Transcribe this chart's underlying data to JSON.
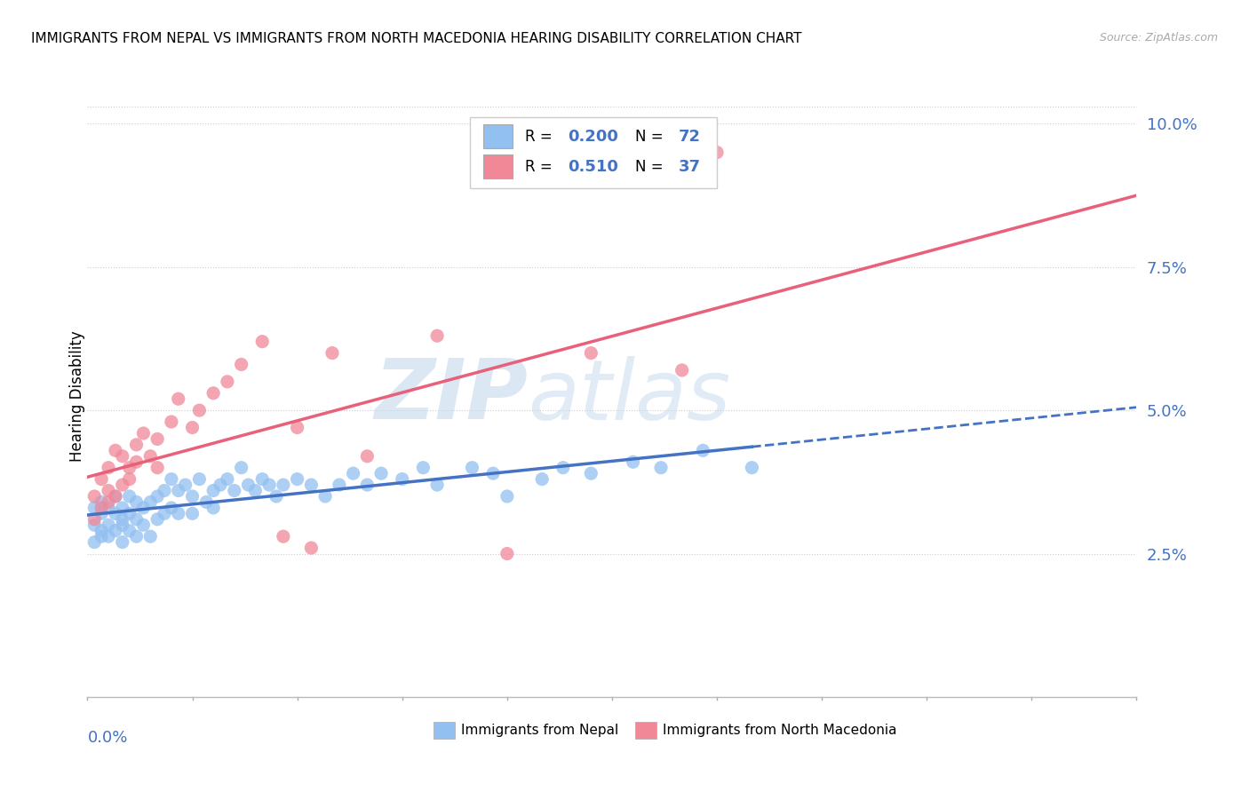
{
  "title": "IMMIGRANTS FROM NEPAL VS IMMIGRANTS FROM NORTH MACEDONIA HEARING DISABILITY CORRELATION CHART",
  "source": "Source: ZipAtlas.com",
  "ylabel": "Hearing Disability",
  "xlim": [
    0.0,
    0.15
  ],
  "ylim": [
    0.0,
    0.105
  ],
  "yticks": [
    0.025,
    0.05,
    0.075,
    0.1
  ],
  "ytick_labels": [
    "2.5%",
    "5.0%",
    "7.5%",
    "10.0%"
  ],
  "nepal_color": "#92C0F0",
  "macedonia_color": "#F08898",
  "nepal_line_color": "#4472C4",
  "macedonia_line_color": "#E8607A",
  "tick_label_color": "#4472C4",
  "nepal_R": 0.2,
  "nepal_N": 72,
  "macedonia_R": 0.51,
  "macedonia_N": 37,
  "nepal_scatter_x": [
    0.001,
    0.001,
    0.001,
    0.002,
    0.002,
    0.002,
    0.002,
    0.003,
    0.003,
    0.003,
    0.004,
    0.004,
    0.004,
    0.005,
    0.005,
    0.005,
    0.005,
    0.006,
    0.006,
    0.006,
    0.007,
    0.007,
    0.007,
    0.008,
    0.008,
    0.009,
    0.009,
    0.01,
    0.01,
    0.011,
    0.011,
    0.012,
    0.012,
    0.013,
    0.013,
    0.014,
    0.015,
    0.015,
    0.016,
    0.017,
    0.018,
    0.018,
    0.019,
    0.02,
    0.021,
    0.022,
    0.023,
    0.024,
    0.025,
    0.026,
    0.027,
    0.028,
    0.03,
    0.032,
    0.034,
    0.036,
    0.038,
    0.04,
    0.042,
    0.045,
    0.048,
    0.05,
    0.055,
    0.058,
    0.06,
    0.065,
    0.068,
    0.072,
    0.078,
    0.082,
    0.088,
    0.095
  ],
  "nepal_scatter_y": [
    0.03,
    0.033,
    0.027,
    0.032,
    0.029,
    0.034,
    0.028,
    0.033,
    0.03,
    0.028,
    0.032,
    0.029,
    0.035,
    0.03,
    0.027,
    0.033,
    0.031,
    0.032,
    0.029,
    0.035,
    0.031,
    0.034,
    0.028,
    0.033,
    0.03,
    0.034,
    0.028,
    0.035,
    0.031,
    0.036,
    0.032,
    0.038,
    0.033,
    0.036,
    0.032,
    0.037,
    0.035,
    0.032,
    0.038,
    0.034,
    0.036,
    0.033,
    0.037,
    0.038,
    0.036,
    0.04,
    0.037,
    0.036,
    0.038,
    0.037,
    0.035,
    0.037,
    0.038,
    0.037,
    0.035,
    0.037,
    0.039,
    0.037,
    0.039,
    0.038,
    0.04,
    0.037,
    0.04,
    0.039,
    0.035,
    0.038,
    0.04,
    0.039,
    0.041,
    0.04,
    0.043,
    0.04
  ],
  "macedonia_scatter_x": [
    0.001,
    0.001,
    0.002,
    0.002,
    0.003,
    0.003,
    0.003,
    0.004,
    0.004,
    0.005,
    0.005,
    0.006,
    0.006,
    0.007,
    0.007,
    0.008,
    0.009,
    0.01,
    0.01,
    0.012,
    0.013,
    0.015,
    0.016,
    0.018,
    0.02,
    0.022,
    0.025,
    0.028,
    0.03,
    0.032,
    0.035,
    0.04,
    0.05,
    0.06,
    0.072,
    0.085,
    0.09
  ],
  "macedonia_scatter_y": [
    0.031,
    0.035,
    0.033,
    0.038,
    0.034,
    0.04,
    0.036,
    0.035,
    0.043,
    0.037,
    0.042,
    0.04,
    0.038,
    0.044,
    0.041,
    0.046,
    0.042,
    0.045,
    0.04,
    0.048,
    0.052,
    0.047,
    0.05,
    0.053,
    0.055,
    0.058,
    0.062,
    0.028,
    0.047,
    0.026,
    0.06,
    0.042,
    0.063,
    0.025,
    0.06,
    0.057,
    0.095
  ],
  "watermark_text": "ZIP",
  "watermark_text2": "atlas"
}
